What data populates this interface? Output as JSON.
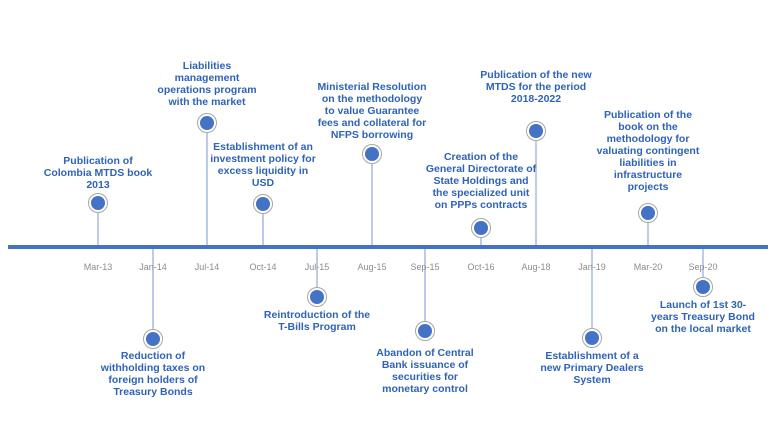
{
  "timeline": {
    "colors": {
      "axis": "#4472c4",
      "connector": "#8eaadb",
      "dot_fill": "#4472c4",
      "dot_ring": "#a6a6a6",
      "label_text": "#2f63b8",
      "date_text": "#8c8c8c"
    },
    "events": [
      {
        "date": "Mar-13",
        "position": "above",
        "label": "Publication of\nColombia MTDS book\n2013"
      },
      {
        "date": "Jan-14",
        "position": "below",
        "label": "Reduction of\nwithholding taxes on\nforeign holders of\nTreasury Bonds"
      },
      {
        "date": "Jul-14",
        "position": "above",
        "label": "Liabilities\nmanagement\noperations program\nwith the market"
      },
      {
        "date": "Oct-14",
        "position": "above",
        "label": "Establishment of an\ninvestment policy for\nexcess liquidity in\nUSD"
      },
      {
        "date": "Jul-15",
        "position": "below",
        "label": "Reintroduction of the\nT-Bills Program"
      },
      {
        "date": "Aug-15",
        "position": "above",
        "label": "Ministerial Resolution\non the methodology\nto value Guarantee\nfees and collateral for\nNFPS borrowing"
      },
      {
        "date": "Sep-15",
        "position": "below",
        "label": "Abandon of Central\nBank issuance of\nsecurities for\nmonetary control"
      },
      {
        "date": "Oct-16",
        "position": "above",
        "label": "Creation of the\nGeneral Directorate of\nState Holdings and\nthe specialized unit\non PPPs contracts"
      },
      {
        "date": "Aug-18",
        "position": "above",
        "label": "Publication of the new\nMTDS for the period\n2018-2022"
      },
      {
        "date": "Jan-19",
        "position": "below",
        "label": "Establishment of a\nnew Primary Dealers\nSystem"
      },
      {
        "date": "Mar-20",
        "position": "above",
        "label": "Publication of the\nbook on the\nmethodology for\nvaluating contingent\nliabilities in\ninfrastructure\nprojects"
      },
      {
        "date": "Sep-20",
        "position": "below",
        "label": "Launch of 1st 30-\nyears Treasury Bond\non the local market"
      }
    ]
  }
}
